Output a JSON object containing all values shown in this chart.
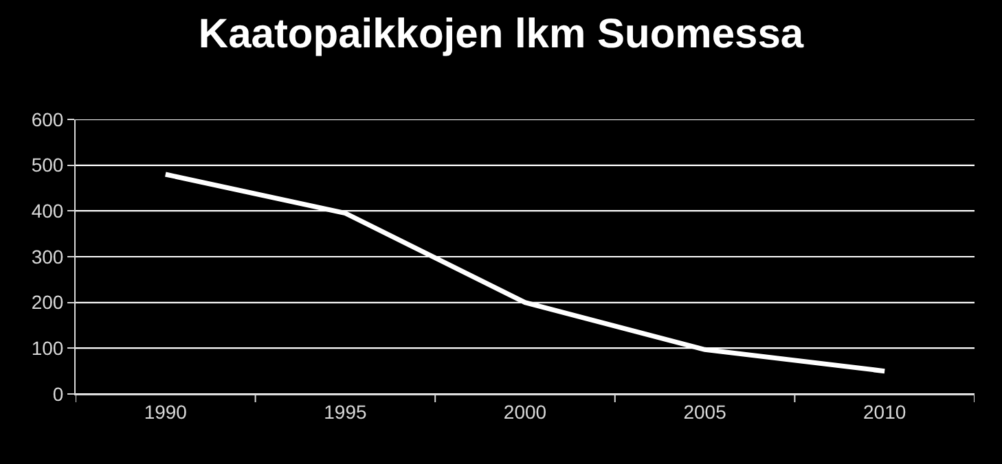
{
  "chart_data": {
    "type": "line",
    "title": "Kaatopaikkojen lkm Suomessa",
    "categories": [
      "1990",
      "1995",
      "2000",
      "2005",
      "2010"
    ],
    "series": [
      {
        "color": "#ffffff",
        "values": [
          480,
          395,
          200,
          97,
          50
        ]
      }
    ],
    "ylim": [
      0,
      600
    ],
    "yticks": [
      0,
      100,
      200,
      300,
      400,
      500,
      600
    ],
    "grid": "y",
    "marker": "none",
    "line_style": "solid"
  }
}
